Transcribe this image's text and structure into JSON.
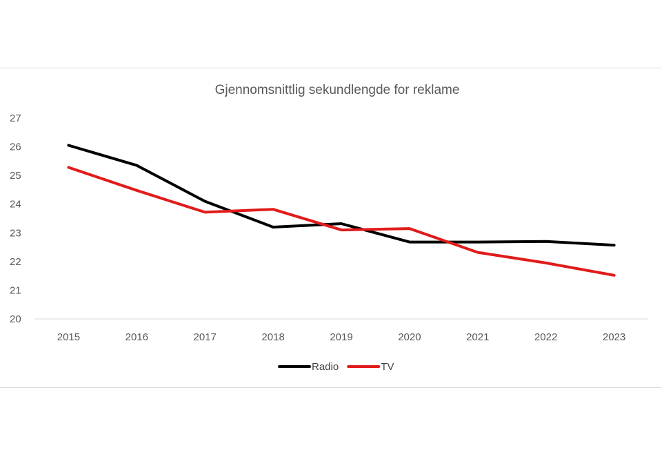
{
  "chart_data": {
    "type": "line",
    "title": "Gjennomsnittlig sekundlengde for reklame",
    "xlabel": "",
    "ylabel": "",
    "categories": [
      "2015",
      "2016",
      "2017",
      "2018",
      "2019",
      "2020",
      "2021",
      "2022",
      "2023"
    ],
    "ylim": [
      20,
      27
    ],
    "yticks": [
      "20",
      "21",
      "22",
      "23",
      "24",
      "25",
      "26",
      "27"
    ],
    "grid": false,
    "legend": "bottom",
    "series": [
      {
        "name": "Radio",
        "color": "#000000",
        "values": [
          26.05,
          25.35,
          24.1,
          23.2,
          23.32,
          22.68,
          22.68,
          22.7,
          22.57
        ]
      },
      {
        "name": "TV",
        "color": "#e11b1b",
        "values": [
          25.28,
          24.48,
          23.72,
          23.82,
          23.1,
          23.15,
          22.32,
          21.95,
          21.52
        ]
      }
    ]
  }
}
